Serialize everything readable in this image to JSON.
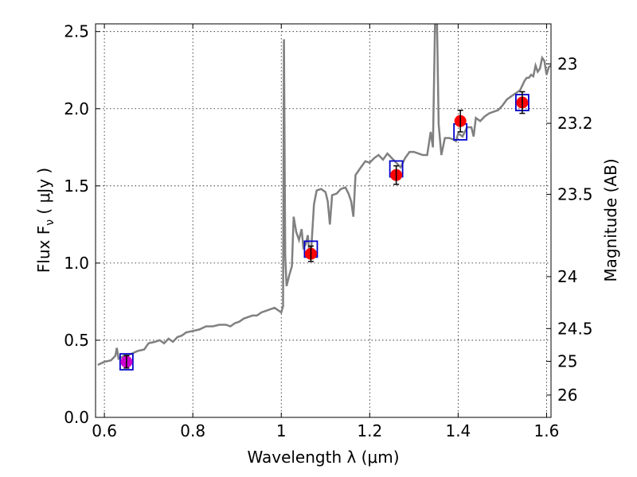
{
  "chart_data": {
    "type": "scatter",
    "xlabel": "Wavelength  λ (μm)",
    "ylabel": "Flux  F",
    "ylabel_sub": "ν",
    "ylabel_unit": "  ( μJy )",
    "y2label": "Magnitude (AB)",
    "xlim": [
      0.58,
      1.61
    ],
    "ylim": [
      0.0,
      2.55
    ],
    "xticks": [
      0.6,
      0.8,
      1.0,
      1.2,
      1.4,
      1.6
    ],
    "xtick_labels": [
      "0.6",
      "0.8",
      "1",
      "1.2",
      "1.4",
      "1.6"
    ],
    "yticks": [
      0.0,
      0.5,
      1.0,
      1.5,
      2.0,
      2.5
    ],
    "ytick_labels": [
      "0.0",
      "0.5",
      "1.0",
      "1.5",
      "2.0",
      "2.5"
    ],
    "y2ticks": [
      {
        "mag": 23,
        "label": "23"
      },
      {
        "mag": 23.2,
        "label": "23.2"
      },
      {
        "mag": 23.5,
        "label": "23.5"
      },
      {
        "mag": 24,
        "label": "24"
      },
      {
        "mag": 24.5,
        "label": "24.5"
      },
      {
        "mag": 25,
        "label": "25"
      },
      {
        "mag": 26,
        "label": "26"
      }
    ],
    "grid": true,
    "series": [
      {
        "kind": "line",
        "color": "#808080",
        "points": [
          [
            0.585,
            0.34
          ],
          [
            0.6,
            0.36
          ],
          [
            0.615,
            0.37
          ],
          [
            0.625,
            0.4
          ],
          [
            0.628,
            0.45
          ],
          [
            0.632,
            0.38
          ],
          [
            0.645,
            0.4
          ],
          [
            0.66,
            0.41
          ],
          [
            0.675,
            0.43
          ],
          [
            0.69,
            0.44
          ],
          [
            0.7,
            0.48
          ],
          [
            0.715,
            0.49
          ],
          [
            0.725,
            0.5
          ],
          [
            0.735,
            0.48
          ],
          [
            0.745,
            0.51
          ],
          [
            0.755,
            0.49
          ],
          [
            0.765,
            0.52
          ],
          [
            0.775,
            0.53
          ],
          [
            0.785,
            0.55
          ],
          [
            0.8,
            0.56
          ],
          [
            0.815,
            0.57
          ],
          [
            0.83,
            0.59
          ],
          [
            0.845,
            0.59
          ],
          [
            0.86,
            0.6
          ],
          [
            0.875,
            0.6
          ],
          [
            0.885,
            0.59
          ],
          [
            0.895,
            0.61
          ],
          [
            0.905,
            0.62
          ],
          [
            0.915,
            0.64
          ],
          [
            0.925,
            0.65
          ],
          [
            0.935,
            0.66
          ],
          [
            0.945,
            0.66
          ],
          [
            0.955,
            0.68
          ],
          [
            0.965,
            0.69
          ],
          [
            0.975,
            0.7
          ],
          [
            0.985,
            0.71
          ],
          [
            0.995,
            0.69
          ],
          [
            1.0,
            0.68
          ],
          [
            1.004,
            0.72
          ],
          [
            1.006,
            2.45
          ],
          [
            1.009,
            1.05
          ],
          [
            1.012,
            0.85
          ],
          [
            1.018,
            0.92
          ],
          [
            1.024,
            0.98
          ],
          [
            1.028,
            1.3
          ],
          [
            1.034,
            1.2
          ],
          [
            1.04,
            1.15
          ],
          [
            1.046,
            1.22
          ],
          [
            1.05,
            1.1
          ],
          [
            1.055,
            1.12
          ],
          [
            1.06,
            1.18
          ],
          [
            1.064,
            1.05
          ],
          [
            1.068,
            1.1
          ],
          [
            1.074,
            1.38
          ],
          [
            1.08,
            1.47
          ],
          [
            1.09,
            1.48
          ],
          [
            1.1,
            1.46
          ],
          [
            1.105,
            1.4
          ],
          [
            1.11,
            1.25
          ],
          [
            1.115,
            1.44
          ],
          [
            1.125,
            1.45
          ],
          [
            1.135,
            1.48
          ],
          [
            1.145,
            1.49
          ],
          [
            1.152,
            1.45
          ],
          [
            1.158,
            1.4
          ],
          [
            1.163,
            1.3
          ],
          [
            1.168,
            1.57
          ],
          [
            1.18,
            1.62
          ],
          [
            1.19,
            1.66
          ],
          [
            1.2,
            1.65
          ],
          [
            1.21,
            1.68
          ],
          [
            1.22,
            1.7
          ],
          [
            1.23,
            1.67
          ],
          [
            1.24,
            1.71
          ],
          [
            1.25,
            1.68
          ],
          [
            1.26,
            1.65
          ],
          [
            1.27,
            1.62
          ],
          [
            1.28,
            1.68
          ],
          [
            1.29,
            1.72
          ],
          [
            1.3,
            1.72
          ],
          [
            1.31,
            1.71
          ],
          [
            1.32,
            1.7
          ],
          [
            1.33,
            1.7
          ],
          [
            1.338,
            1.85
          ],
          [
            1.343,
            1.75
          ],
          [
            1.348,
            2.6
          ],
          [
            1.352,
            2.6
          ],
          [
            1.356,
            1.9
          ],
          [
            1.362,
            1.7
          ],
          [
            1.37,
            1.81
          ],
          [
            1.38,
            1.81
          ],
          [
            1.39,
            1.8
          ],
          [
            1.395,
            1.79
          ],
          [
            1.4,
            1.84
          ],
          [
            1.41,
            1.82
          ],
          [
            1.42,
            1.88
          ],
          [
            1.43,
            1.88
          ],
          [
            1.435,
            1.82
          ],
          [
            1.44,
            1.94
          ],
          [
            1.45,
            1.92
          ],
          [
            1.46,
            1.95
          ],
          [
            1.47,
            1.97
          ],
          [
            1.48,
            1.98
          ],
          [
            1.49,
            1.99
          ],
          [
            1.5,
            2.02
          ],
          [
            1.51,
            2.06
          ],
          [
            1.52,
            2.08
          ],
          [
            1.53,
            2.1
          ],
          [
            1.54,
            2.12
          ],
          [
            1.55,
            2.18
          ],
          [
            1.555,
            2.2
          ],
          [
            1.56,
            2.2
          ],
          [
            1.565,
            2.22
          ],
          [
            1.57,
            2.21
          ],
          [
            1.575,
            2.28
          ],
          [
            1.58,
            2.24
          ],
          [
            1.585,
            2.26
          ],
          [
            1.59,
            2.33
          ],
          [
            1.595,
            2.31
          ],
          [
            1.6,
            2.22
          ],
          [
            1.605,
            2.27
          ],
          [
            1.61,
            2.28
          ]
        ]
      },
      {
        "kind": "model-boxes",
        "color": "#0000cc",
        "points": [
          {
            "x": 0.65,
            "y": 0.36
          },
          {
            "x": 1.067,
            "y": 1.09
          },
          {
            "x": 1.26,
            "y": 1.61
          },
          {
            "x": 1.405,
            "y": 1.85
          },
          {
            "x": 1.545,
            "y": 2.04
          }
        ]
      },
      {
        "kind": "observed-points",
        "color": "#ff0000",
        "points": [
          {
            "x": 1.067,
            "y": 1.06,
            "err": 0.05
          },
          {
            "x": 1.26,
            "y": 1.57,
            "err": 0.06
          },
          {
            "x": 1.405,
            "y": 1.92,
            "err": 0.07
          },
          {
            "x": 1.545,
            "y": 2.04,
            "err": 0.07
          }
        ]
      },
      {
        "kind": "observed-point-alt",
        "color": "#cc00cc",
        "points": [
          {
            "x": 0.65,
            "y": 0.36,
            "err": 0.04
          }
        ]
      }
    ]
  }
}
